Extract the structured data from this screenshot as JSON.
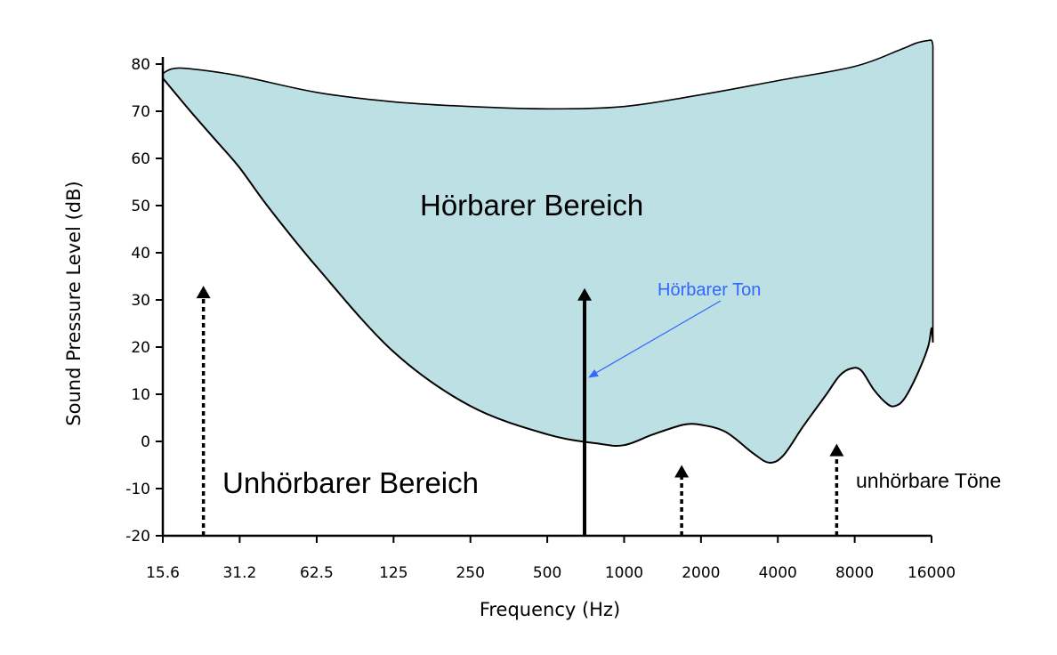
{
  "chart_data": {
    "type": "area",
    "xlabel": "Frequency (Hz)",
    "ylabel": "Sound Pressure Level (dB)",
    "x_scale": "log2",
    "xlim": [
      15.6,
      16000
    ],
    "ylim": [
      -20,
      80
    ],
    "x_ticks": [
      "15.6",
      "31.2",
      "62.5",
      "125",
      "250",
      "500",
      "1000",
      "2000",
      "4000",
      "8000",
      "16000"
    ],
    "x_tick_values": [
      15.6,
      31.2,
      62.5,
      125,
      250,
      500,
      1000,
      2000,
      4000,
      8000,
      16000
    ],
    "y_ticks": [
      80,
      70,
      60,
      50,
      40,
      30,
      20,
      10,
      0,
      -10,
      -20
    ],
    "grid": false,
    "fill_color": "#bde0e4",
    "series": [
      {
        "role": "threshold_of_pain_upper",
        "x": [
          15.6,
          17,
          20,
          31.2,
          62.5,
          125,
          250,
          500,
          1000,
          2000,
          4000,
          8000,
          12000,
          14000,
          15500,
          16000,
          16200
        ],
        "y": [
          78,
          79,
          79,
          77.5,
          74,
          72,
          71,
          70.5,
          71,
          73.5,
          76.5,
          79.5,
          83,
          84.5,
          85,
          85,
          84
        ]
      },
      {
        "role": "threshold_of_hearing_lower",
        "x": [
          15.6,
          20,
          25,
          31.2,
          40,
          62.5,
          125,
          250,
          500,
          800,
          1000,
          1300,
          1700,
          2000,
          2500,
          3200,
          3700,
          4200,
          5000,
          6200,
          7000,
          7800,
          8500,
          9500,
          10700,
          11500,
          12500,
          14000,
          15500,
          16000,
          16200
        ],
        "y": [
          77,
          70,
          64,
          58,
          50,
          37,
          19,
          7.5,
          1.5,
          -0.5,
          -0.8,
          1.5,
          3.5,
          3.5,
          2,
          -2.5,
          -4.5,
          -3,
          3,
          10,
          14,
          15.5,
          15,
          11,
          8,
          7.5,
          9,
          14,
          20,
          24,
          21
        ]
      }
    ],
    "annotations": {
      "audible_area": "Hörbarer Bereich",
      "inaudible_area": "Unhörbarer Bereich",
      "audible_tone": "Hörbarer Ton",
      "inaudible_tones": "unhörbare Töne"
    },
    "tones": [
      {
        "freq": 22.5,
        "from": -20,
        "to": 33,
        "style": "dotted",
        "audible": false
      },
      {
        "freq": 700,
        "from": -20,
        "to": 32.5,
        "style": "solid",
        "audible": true
      },
      {
        "freq": 1680,
        "from": -20,
        "to": -5,
        "style": "dotted",
        "audible": false
      },
      {
        "freq": 6800,
        "from": -20,
        "to": -0.5,
        "style": "dotted",
        "audible": false
      }
    ],
    "annotation_color": "#3366ff"
  }
}
